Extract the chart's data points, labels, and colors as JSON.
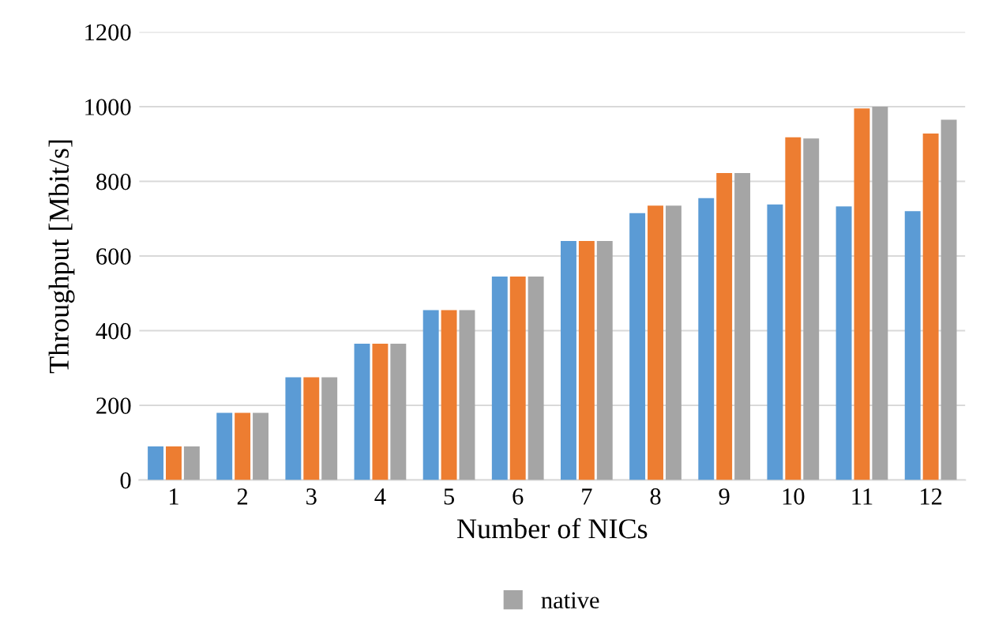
{
  "chart_data": {
    "type": "bar",
    "xlabel": "Number of NICs",
    "ylabel": "Throughput [Mbit/s]",
    "categories": [
      "1",
      "2",
      "3",
      "4",
      "5",
      "6",
      "7",
      "8",
      "9",
      "10",
      "11",
      "12"
    ],
    "series": [
      {
        "color": "#5b9bd5",
        "values": [
          90,
          180,
          275,
          365,
          455,
          545,
          640,
          715,
          755,
          738,
          733,
          720
        ]
      },
      {
        "color": "#ed7d31",
        "values": [
          90,
          180,
          275,
          365,
          455,
          545,
          640,
          735,
          822,
          918,
          995,
          928
        ]
      },
      {
        "name": "native",
        "color": "#a5a5a5",
        "values": [
          90,
          180,
          275,
          365,
          455,
          545,
          640,
          735,
          822,
          915,
          1000,
          965
        ]
      }
    ],
    "ylim": [
      0,
      1200
    ],
    "yticks": [
      0,
      200,
      400,
      600,
      800,
      1000,
      1200
    ],
    "grid": "y",
    "legend": "bottom"
  }
}
